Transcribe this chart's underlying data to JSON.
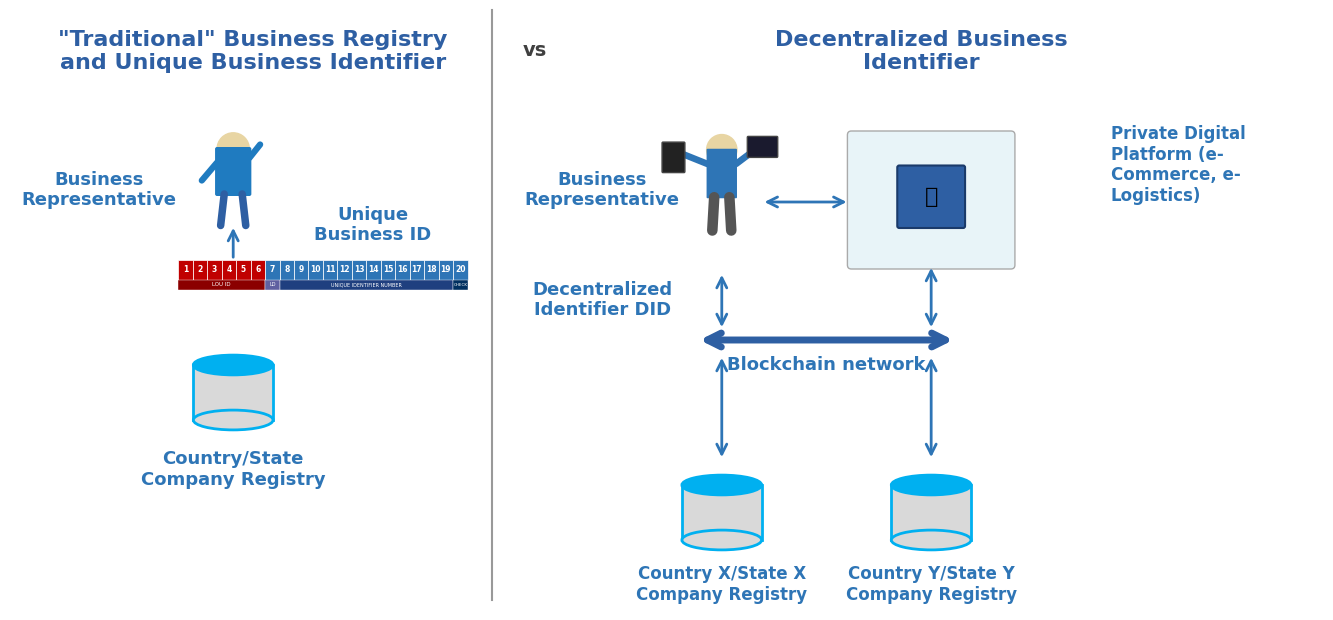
{
  "left_title": "\"Traditional\" Business Registry\nand Unique Business Identifier",
  "right_title": "Decentralized Business\nIdentifier",
  "vs_text": "vs",
  "left_biz_rep_label": "Business\nRepresentative",
  "left_registry_label": "Country/State\nCompany Registry",
  "unique_id_label": "Unique\nBusiness ID",
  "right_biz_rep_label": "Business\nRepresentative",
  "did_label": "Decentralized\nIdentifier DID",
  "blockchain_label": "Blockchain network",
  "private_platform_label": "Private Digital\nPlatform (e-\nCommerce, e-\nLogistics)",
  "registry_x_label": "Country X/State X\nCompany Registry",
  "registry_y_label": "Country Y/State Y\nCompany Registry",
  "title_color": "#2E5FA3",
  "label_color": "#2E75B6",
  "vs_color": "#404040",
  "arrow_color": "#2E75B6",
  "blockchain_arrow_color": "#2E5FA3",
  "divider_color": "#999999",
  "cylinder_body_color": "#D9D9D9",
  "cylinder_top_color": "#00B0F0",
  "id_bar_colors": [
    "#C00000",
    "#C00000",
    "#C00000",
    "#C00000",
    "#C00000",
    "#C00000",
    "#2E75B6",
    "#2E75B6",
    "#2E75B6",
    "#2E75B6",
    "#2E75B6",
    "#2E75B6",
    "#2E75B6",
    "#2E75B6",
    "#2E75B6",
    "#2E75B6",
    "#2E75B6",
    "#2E75B6",
    "#2E75B6",
    "#2E75B6"
  ]
}
